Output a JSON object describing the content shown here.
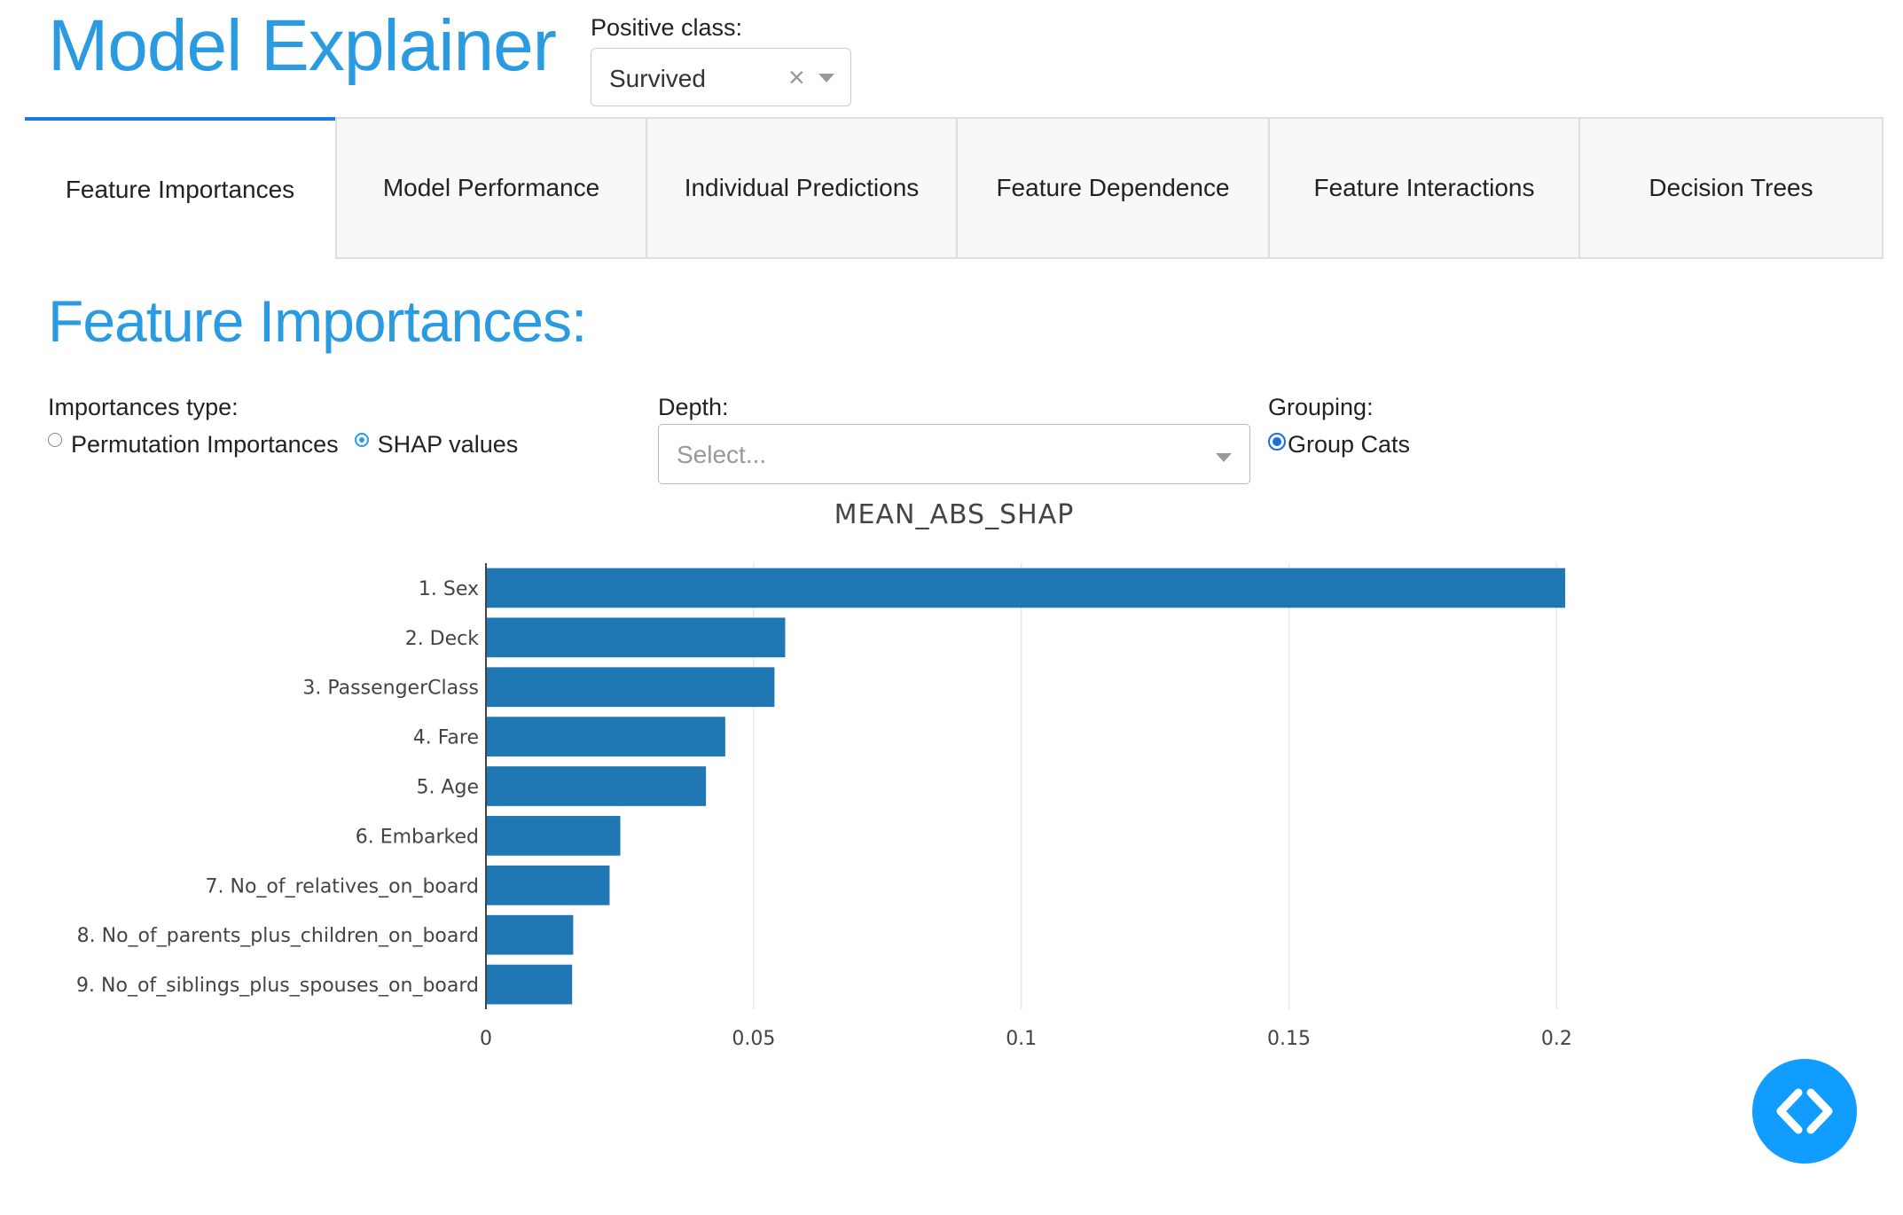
{
  "header": {
    "title": "Model Explainer",
    "positive_class_label": "Positive class:",
    "positive_class_value": "Survived",
    "clear_glyph": "×"
  },
  "tabs": [
    {
      "label": "Feature Importances",
      "active": true
    },
    {
      "label": "Model Performance",
      "active": false
    },
    {
      "label": "Individual Predictions",
      "active": false
    },
    {
      "label": "Feature Dependence",
      "active": false
    },
    {
      "label": "Feature Interactions",
      "active": false
    },
    {
      "label": "Decision Trees",
      "active": false
    }
  ],
  "section_title": "Feature Importances:",
  "controls": {
    "importances_type": {
      "label": "Importances type:",
      "options": [
        "Permutation Importances",
        "SHAP values"
      ],
      "selected": "SHAP values"
    },
    "depth": {
      "label": "Depth:",
      "placeholder": "Select..."
    },
    "grouping": {
      "label": "Grouping:",
      "option": "Group Cats",
      "checked": true
    }
  },
  "chart_data": {
    "type": "bar",
    "orientation": "horizontal",
    "title": "MEAN_ABS_SHAP",
    "categories": [
      "1. Sex",
      "2. Deck",
      "3. PassengerClass",
      "4. Fare",
      "5. Age",
      "6. Embarked",
      "7. No_of_relatives_on_board",
      "8. No_of_parents_plus_children_on_board",
      "9. No_of_siblings_plus_spouses_on_board"
    ],
    "values": [
      0.2016,
      0.0559,
      0.0539,
      0.0447,
      0.0411,
      0.0251,
      0.0231,
      0.0163,
      0.0161
    ],
    "xticks": [
      0,
      0.05,
      0.1,
      0.15,
      0.2
    ],
    "xtick_labels": [
      "0",
      "0.05",
      "0.1",
      "0.15",
      "0.2"
    ],
    "xlim": [
      0,
      0.2276
    ],
    "grid": true,
    "bar_color": "#1f77b4"
  },
  "fab": {
    "icon": "code-brackets-icon",
    "color": "#119dff"
  },
  "colors": {
    "accent": "#2a9be0",
    "active_tab_border": "#1a7ae0"
  }
}
